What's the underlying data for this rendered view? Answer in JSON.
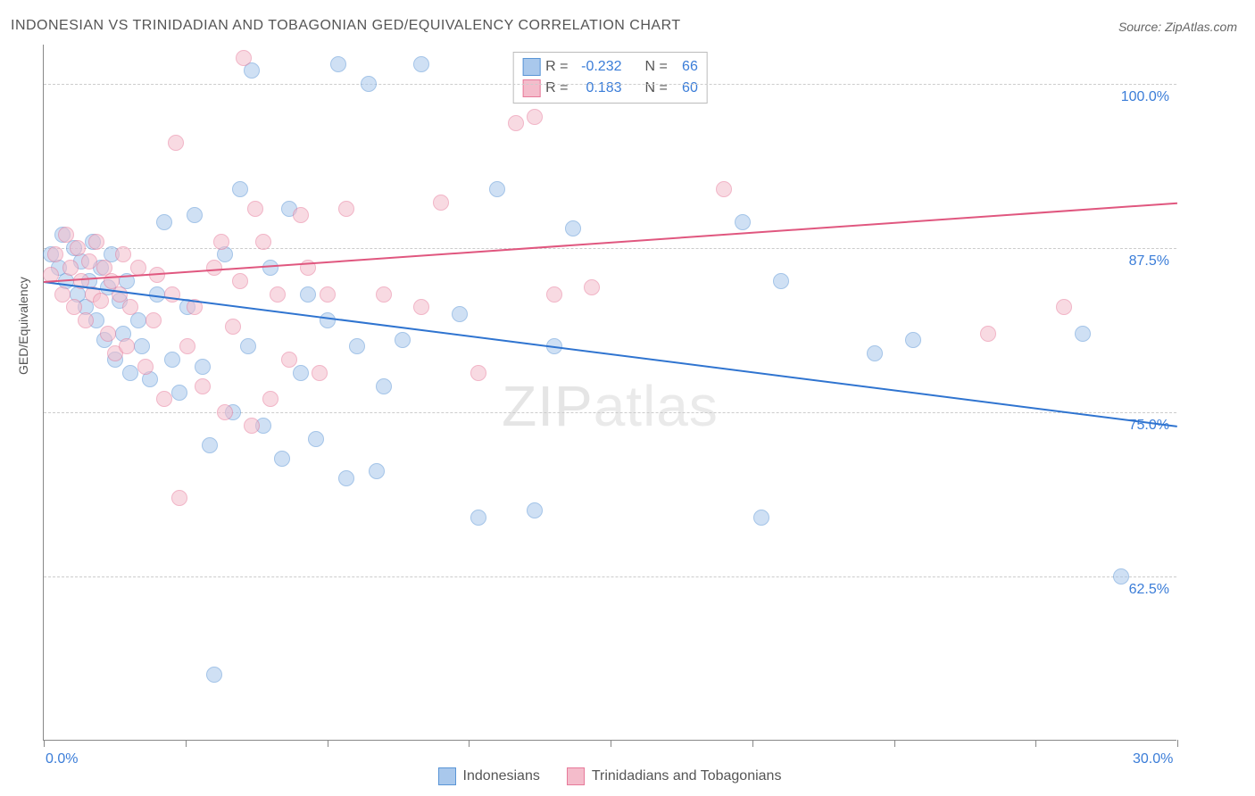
{
  "title": "INDONESIAN VS TRINIDADIAN AND TOBAGONIAN GED/EQUIVALENCY CORRELATION CHART",
  "source_label": "Source: ZipAtlas.com",
  "ylabel": "GED/Equivalency",
  "watermark": "ZIPatlas",
  "chart": {
    "type": "scatter-with-regression",
    "background_color": "#ffffff",
    "grid_color": "#cccccc",
    "axis_color": "#888888",
    "xlim": [
      0,
      30
    ],
    "ylim": [
      50,
      103
    ],
    "x_ticks": [
      0,
      3.75,
      7.5,
      11.25,
      15,
      18.75,
      22.5,
      26.25,
      30
    ],
    "x_tick_labels_shown": {
      "0": "0.0%",
      "30": "30.0%"
    },
    "y_gridlines": [
      62.5,
      75.0,
      87.5,
      100.0
    ],
    "y_tick_labels": [
      "62.5%",
      "75.0%",
      "87.5%",
      "100.0%"
    ],
    "point_radius": 9,
    "point_opacity": 0.55,
    "series": [
      {
        "name": "Indonesians",
        "color_fill": "#a9c8ec",
        "color_stroke": "#5a95d6",
        "line_color": "#2f74d0",
        "R": -0.232,
        "N": 66,
        "trend": {
          "x1": 0,
          "y1": 85.0,
          "x2": 30,
          "y2": 74.0
        },
        "points": [
          [
            0.2,
            87.0
          ],
          [
            0.4,
            86.0
          ],
          [
            0.5,
            88.5
          ],
          [
            0.6,
            85.0
          ],
          [
            0.8,
            87.5
          ],
          [
            0.9,
            84.0
          ],
          [
            1.0,
            86.5
          ],
          [
            1.1,
            83.0
          ],
          [
            1.2,
            85.0
          ],
          [
            1.3,
            88.0
          ],
          [
            1.4,
            82.0
          ],
          [
            1.5,
            86.0
          ],
          [
            1.6,
            80.5
          ],
          [
            1.7,
            84.5
          ],
          [
            1.8,
            87.0
          ],
          [
            1.9,
            79.0
          ],
          [
            2.0,
            83.5
          ],
          [
            2.1,
            81.0
          ],
          [
            2.2,
            85.0
          ],
          [
            2.3,
            78.0
          ],
          [
            2.5,
            82.0
          ],
          [
            2.6,
            80.0
          ],
          [
            2.8,
            77.5
          ],
          [
            3.0,
            84.0
          ],
          [
            3.2,
            89.5
          ],
          [
            3.4,
            79.0
          ],
          [
            3.6,
            76.5
          ],
          [
            3.8,
            83.0
          ],
          [
            4.0,
            90.0
          ],
          [
            4.2,
            78.5
          ],
          [
            4.4,
            72.5
          ],
          [
            4.5,
            55.0
          ],
          [
            4.8,
            87.0
          ],
          [
            5.0,
            75.0
          ],
          [
            5.2,
            92.0
          ],
          [
            5.4,
            80.0
          ],
          [
            5.5,
            101.0
          ],
          [
            5.8,
            74.0
          ],
          [
            6.0,
            86.0
          ],
          [
            6.3,
            71.5
          ],
          [
            6.5,
            90.5
          ],
          [
            6.8,
            78.0
          ],
          [
            7.0,
            84.0
          ],
          [
            7.2,
            73.0
          ],
          [
            7.5,
            82.0
          ],
          [
            7.8,
            101.5
          ],
          [
            8.0,
            70.0
          ],
          [
            8.3,
            80.0
          ],
          [
            8.6,
            100.0
          ],
          [
            8.8,
            70.5
          ],
          [
            9.0,
            77.0
          ],
          [
            9.5,
            80.5
          ],
          [
            10.0,
            101.5
          ],
          [
            11.0,
            82.5
          ],
          [
            11.5,
            67.0
          ],
          [
            12.0,
            92.0
          ],
          [
            13.0,
            67.5
          ],
          [
            13.5,
            80.0
          ],
          [
            14.0,
            89.0
          ],
          [
            18.5,
            89.5
          ],
          [
            19.5,
            85.0
          ],
          [
            22.0,
            79.5
          ],
          [
            23.0,
            80.5
          ],
          [
            27.5,
            81.0
          ],
          [
            28.5,
            62.5
          ],
          [
            19.0,
            67.0
          ]
        ]
      },
      {
        "name": "Trinidadians and Tobagonians",
        "color_fill": "#f4bccb",
        "color_stroke": "#e77a9a",
        "line_color": "#e0577f",
        "R": 0.183,
        "N": 60,
        "trend": {
          "x1": 0,
          "y1": 85.0,
          "x2": 30,
          "y2": 91.0
        },
        "points": [
          [
            0.2,
            85.5
          ],
          [
            0.3,
            87.0
          ],
          [
            0.5,
            84.0
          ],
          [
            0.6,
            88.5
          ],
          [
            0.7,
            86.0
          ],
          [
            0.8,
            83.0
          ],
          [
            0.9,
            87.5
          ],
          [
            1.0,
            85.0
          ],
          [
            1.1,
            82.0
          ],
          [
            1.2,
            86.5
          ],
          [
            1.3,
            84.0
          ],
          [
            1.4,
            88.0
          ],
          [
            1.5,
            83.5
          ],
          [
            1.6,
            86.0
          ],
          [
            1.7,
            81.0
          ],
          [
            1.8,
            85.0
          ],
          [
            1.9,
            79.5
          ],
          [
            2.0,
            84.0
          ],
          [
            2.1,
            87.0
          ],
          [
            2.2,
            80.0
          ],
          [
            2.3,
            83.0
          ],
          [
            2.5,
            86.0
          ],
          [
            2.7,
            78.5
          ],
          [
            2.9,
            82.0
          ],
          [
            3.0,
            85.5
          ],
          [
            3.2,
            76.0
          ],
          [
            3.4,
            84.0
          ],
          [
            3.5,
            95.5
          ],
          [
            3.6,
            68.5
          ],
          [
            3.8,
            80.0
          ],
          [
            4.0,
            83.0
          ],
          [
            4.2,
            77.0
          ],
          [
            4.5,
            86.0
          ],
          [
            4.7,
            88.0
          ],
          [
            4.8,
            75.0
          ],
          [
            5.0,
            81.5
          ],
          [
            5.2,
            85.0
          ],
          [
            5.3,
            102.0
          ],
          [
            5.5,
            74.0
          ],
          [
            5.8,
            88.0
          ],
          [
            6.0,
            76.0
          ],
          [
            6.2,
            84.0
          ],
          [
            6.5,
            79.0
          ],
          [
            6.8,
            90.0
          ],
          [
            7.0,
            86.0
          ],
          [
            7.3,
            78.0
          ],
          [
            7.5,
            84.0
          ],
          [
            8.0,
            90.5
          ],
          [
            9.0,
            84.0
          ],
          [
            10.0,
            83.0
          ],
          [
            10.5,
            91.0
          ],
          [
            11.5,
            78.0
          ],
          [
            12.5,
            97.0
          ],
          [
            13.0,
            97.5
          ],
          [
            13.5,
            84.0
          ],
          [
            14.5,
            84.5
          ],
          [
            18.0,
            92.0
          ],
          [
            25.0,
            81.0
          ],
          [
            27.0,
            83.0
          ],
          [
            5.6,
            90.5
          ]
        ]
      }
    ]
  },
  "legend_top": {
    "rows": [
      {
        "swatch": 0,
        "R_label": "R = ",
        "R_value": "-0.232",
        "N_label": "N = ",
        "N_value": "66"
      },
      {
        "swatch": 1,
        "R_label": "R = ",
        "R_value": "0.183",
        "N_label": "N = ",
        "N_value": "60"
      }
    ]
  },
  "legend_bottom": {
    "items": [
      {
        "swatch": 0,
        "label": "Indonesians"
      },
      {
        "swatch": 1,
        "label": "Trinidadians and Tobagonians"
      }
    ]
  }
}
